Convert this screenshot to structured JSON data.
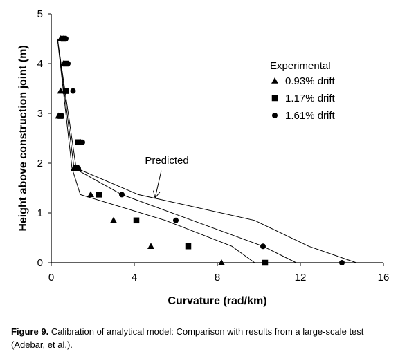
{
  "chart_data": {
    "type": "scatter",
    "xlabel": "Curvature (rad/km)",
    "ylabel": "Height above construction joint (m)",
    "xlim": [
      0,
      16
    ],
    "ylim": [
      0,
      5
    ],
    "x_ticks": [
      0,
      4,
      8,
      12,
      16
    ],
    "y_ticks": [
      0,
      1,
      2,
      3,
      4,
      5
    ],
    "grid": false,
    "legend": {
      "title": "Experimental",
      "placement": "top-right",
      "entries": [
        {
          "label": "0.93% drift",
          "marker": "triangle"
        },
        {
          "label": "1.17% drift",
          "marker": "square"
        },
        {
          "label": "1.61% drift",
          "marker": "circle"
        }
      ]
    },
    "series": [
      {
        "name": "0.93% drift",
        "marker": "triangle",
        "points": [
          [
            0.45,
            4.5
          ],
          [
            0.6,
            4.5
          ],
          [
            0.6,
            4.0
          ],
          [
            0.45,
            3.45
          ],
          [
            0.35,
            2.95
          ],
          [
            1.4,
            2.42
          ],
          [
            1.1,
            1.9
          ],
          [
            1.3,
            1.9
          ],
          [
            1.9,
            1.37
          ],
          [
            3.0,
            0.85
          ],
          [
            4.8,
            0.33
          ],
          [
            8.2,
            0.0
          ]
        ]
      },
      {
        "name": "1.17% drift",
        "marker": "square",
        "points": [
          [
            0.6,
            4.5
          ],
          [
            0.7,
            4.0
          ],
          [
            0.7,
            3.45
          ],
          [
            0.45,
            2.95
          ],
          [
            1.3,
            2.42
          ],
          [
            1.2,
            1.9
          ],
          [
            2.3,
            1.37
          ],
          [
            4.1,
            0.85
          ],
          [
            6.6,
            0.33
          ],
          [
            10.3,
            0.0
          ]
        ]
      },
      {
        "name": "1.61% drift",
        "marker": "circle",
        "points": [
          [
            0.7,
            4.5
          ],
          [
            0.8,
            4.0
          ],
          [
            1.05,
            3.45
          ],
          [
            0.5,
            2.95
          ],
          [
            1.5,
            2.42
          ],
          [
            1.3,
            1.9
          ],
          [
            3.4,
            1.37
          ],
          [
            6.0,
            0.85
          ],
          [
            10.2,
            0.33
          ],
          [
            14.0,
            0.0
          ]
        ]
      }
    ],
    "predicted_lines": [
      {
        "points": [
          [
            0.3,
            4.5
          ],
          [
            1.0,
            1.9
          ],
          [
            1.4,
            1.37
          ],
          [
            5.5,
            0.85
          ],
          [
            8.7,
            0.33
          ],
          [
            9.8,
            0.0
          ]
        ]
      },
      {
        "points": [
          [
            0.3,
            4.5
          ],
          [
            1.1,
            1.9
          ],
          [
            3.4,
            1.37
          ],
          [
            6.8,
            0.85
          ],
          [
            10.2,
            0.33
          ],
          [
            11.8,
            0.0
          ]
        ]
      },
      {
        "points": [
          [
            0.3,
            4.5
          ],
          [
            1.2,
            1.9
          ],
          [
            4.2,
            1.37
          ],
          [
            9.8,
            0.85
          ],
          [
            12.4,
            0.33
          ],
          [
            14.7,
            0.0
          ]
        ]
      }
    ],
    "annotation": {
      "text": "Predicted",
      "arrow_from": [
        5.3,
        1.85
      ],
      "arrow_to": [
        5.0,
        1.3
      ]
    }
  },
  "caption": {
    "lead": "Figure 9.",
    "text": "Calibration of analytical model: Comparison with results from a large-scale test (Adebar, et al.)."
  }
}
